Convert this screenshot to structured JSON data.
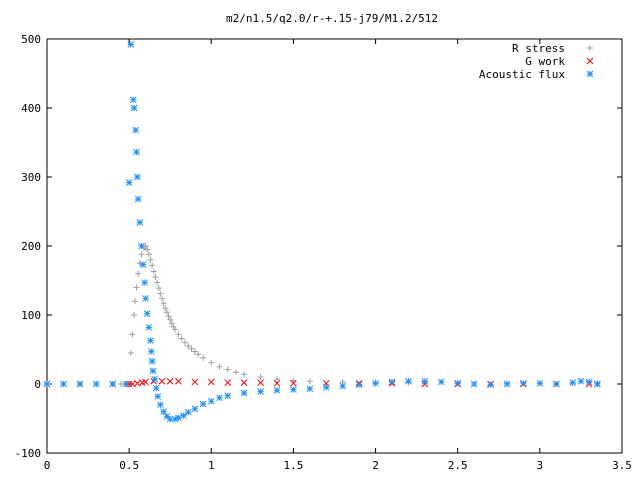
{
  "chart_data": {
    "type": "scatter",
    "title": "m2/n1.5/q2.0/r-+.15-j79/M1.2/512",
    "xlabel": "",
    "ylabel": "",
    "xlim": [
      0,
      3.5
    ],
    "ylim": [
      -100,
      500
    ],
    "x_ticks": [
      0,
      0.5,
      1,
      1.5,
      2,
      2.5,
      3,
      3.5
    ],
    "x_tick_labels": [
      "0",
      "0.5",
      "1",
      "1.5",
      "2",
      "2.5",
      "3",
      "3.5"
    ],
    "y_ticks": [
      -100,
      0,
      100,
      200,
      300,
      400,
      500
    ],
    "y_tick_labels": [
      "-100",
      "0",
      "100",
      "200",
      "300",
      "400",
      "500"
    ],
    "grid": false,
    "legend_position": "top-right",
    "series": [
      {
        "name": "R stress",
        "marker": "plus",
        "color": "#a0a0a0",
        "points": [
          [
            0.0,
            0
          ],
          [
            0.1,
            0
          ],
          [
            0.2,
            0
          ],
          [
            0.3,
            0
          ],
          [
            0.4,
            0
          ],
          [
            0.45,
            0
          ],
          [
            0.5,
            0
          ],
          [
            0.51,
            45
          ],
          [
            0.52,
            72
          ],
          [
            0.53,
            100
          ],
          [
            0.535,
            120
          ],
          [
            0.545,
            140
          ],
          [
            0.555,
            160
          ],
          [
            0.565,
            175
          ],
          [
            0.575,
            188
          ],
          [
            0.59,
            197
          ],
          [
            0.6,
            200
          ],
          [
            0.61,
            195
          ],
          [
            0.62,
            188
          ],
          [
            0.63,
            180
          ],
          [
            0.64,
            172
          ],
          [
            0.65,
            163
          ],
          [
            0.66,
            155
          ],
          [
            0.67,
            147
          ],
          [
            0.68,
            139
          ],
          [
            0.69,
            131
          ],
          [
            0.7,
            124
          ],
          [
            0.71,
            117
          ],
          [
            0.72,
            110
          ],
          [
            0.73,
            104
          ],
          [
            0.74,
            98
          ],
          [
            0.75,
            93
          ],
          [
            0.76,
            88
          ],
          [
            0.77,
            83
          ],
          [
            0.78,
            79
          ],
          [
            0.8,
            72
          ],
          [
            0.82,
            66
          ],
          [
            0.84,
            60
          ],
          [
            0.86,
            55
          ],
          [
            0.88,
            51
          ],
          [
            0.9,
            47
          ],
          [
            0.92,
            43
          ],
          [
            0.95,
            38
          ],
          [
            1.0,
            31
          ],
          [
            1.05,
            25
          ],
          [
            1.1,
            21
          ],
          [
            1.15,
            17
          ],
          [
            1.2,
            14
          ],
          [
            1.3,
            10
          ],
          [
            1.4,
            7
          ],
          [
            1.5,
            5
          ],
          [
            1.6,
            4
          ],
          [
            1.8,
            3
          ],
          [
            2.0,
            2
          ],
          [
            2.2,
            2
          ],
          [
            2.5,
            1
          ],
          [
            2.8,
            1
          ],
          [
            3.0,
            1
          ],
          [
            3.2,
            1
          ],
          [
            3.35,
            1
          ]
        ]
      },
      {
        "name": "G work",
        "marker": "cross",
        "color": "#ff0000",
        "points": [
          [
            0.0,
            0
          ],
          [
            0.2,
            0
          ],
          [
            0.4,
            0
          ],
          [
            0.5,
            0
          ],
          [
            0.52,
            0
          ],
          [
            0.55,
            1
          ],
          [
            0.58,
            2
          ],
          [
            0.6,
            3
          ],
          [
            0.65,
            4
          ],
          [
            0.7,
            4
          ],
          [
            0.75,
            4
          ],
          [
            0.8,
            4
          ],
          [
            0.9,
            3
          ],
          [
            1.0,
            3
          ],
          [
            1.1,
            2
          ],
          [
            1.2,
            2
          ],
          [
            1.3,
            2
          ],
          [
            1.4,
            1
          ],
          [
            1.5,
            1
          ],
          [
            1.7,
            1
          ],
          [
            1.9,
            1
          ],
          [
            2.1,
            1
          ],
          [
            2.3,
            0
          ],
          [
            2.5,
            0
          ],
          [
            2.7,
            0
          ],
          [
            2.9,
            0
          ],
          [
            3.1,
            0
          ],
          [
            3.3,
            0
          ],
          [
            3.35,
            0
          ]
        ]
      },
      {
        "name": "Acoustic flux",
        "marker": "star",
        "color": "#1e90ff",
        "points": [
          [
            0.0,
            0
          ],
          [
            0.1,
            0
          ],
          [
            0.2,
            0
          ],
          [
            0.3,
            0
          ],
          [
            0.4,
            0
          ],
          [
            0.48,
            0
          ],
          [
            0.5,
            292
          ],
          [
            0.51,
            492
          ],
          [
            0.525,
            412
          ],
          [
            0.53,
            400
          ],
          [
            0.54,
            368
          ],
          [
            0.545,
            336
          ],
          [
            0.55,
            300
          ],
          [
            0.555,
            268
          ],
          [
            0.565,
            234
          ],
          [
            0.575,
            200
          ],
          [
            0.585,
            173
          ],
          [
            0.595,
            147
          ],
          [
            0.6,
            124
          ],
          [
            0.61,
            102
          ],
          [
            0.62,
            82
          ],
          [
            0.63,
            63
          ],
          [
            0.635,
            47
          ],
          [
            0.64,
            33
          ],
          [
            0.645,
            19
          ],
          [
            0.655,
            7
          ],
          [
            0.665,
            -6
          ],
          [
            0.675,
            -18
          ],
          [
            0.69,
            -30
          ],
          [
            0.71,
            -40
          ],
          [
            0.73,
            -47
          ],
          [
            0.75,
            -51
          ],
          [
            0.78,
            -51
          ],
          [
            0.8,
            -49
          ],
          [
            0.83,
            -46
          ],
          [
            0.86,
            -41
          ],
          [
            0.9,
            -36
          ],
          [
            0.95,
            -29
          ],
          [
            1.0,
            -25
          ],
          [
            1.05,
            -20
          ],
          [
            1.1,
            -17
          ],
          [
            1.2,
            -13
          ],
          [
            1.3,
            -11
          ],
          [
            1.4,
            -9
          ],
          [
            1.5,
            -8
          ],
          [
            1.6,
            -7
          ],
          [
            1.7,
            -5
          ],
          [
            1.8,
            -3
          ],
          [
            1.9,
            -1
          ],
          [
            2.0,
            1
          ],
          [
            2.1,
            3
          ],
          [
            2.2,
            4
          ],
          [
            2.3,
            4
          ],
          [
            2.4,
            3
          ],
          [
            2.5,
            1
          ],
          [
            2.6,
            0
          ],
          [
            2.7,
            -1
          ],
          [
            2.8,
            0
          ],
          [
            2.9,
            1
          ],
          [
            3.0,
            1
          ],
          [
            3.1,
            0
          ],
          [
            3.2,
            2
          ],
          [
            3.25,
            4
          ],
          [
            3.3,
            3
          ],
          [
            3.35,
            0
          ]
        ]
      }
    ]
  }
}
